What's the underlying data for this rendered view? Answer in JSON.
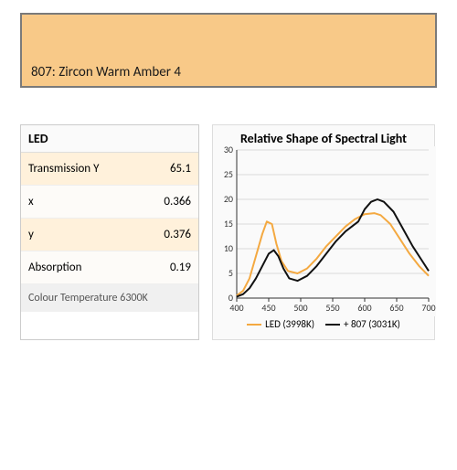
{
  "swatch": {
    "label": "807: Zircon Warm Amber 4",
    "fill_color": "#f8c988",
    "border_color": "#7a7a7a"
  },
  "table": {
    "header": "LED",
    "rows": [
      {
        "label": "Transmission Y",
        "value": "65.1",
        "bg": "#fff1db"
      },
      {
        "label": "x",
        "value": "0.366",
        "bg": "#fdfbf8"
      },
      {
        "label": "y",
        "value": "0.376",
        "bg": "#fff1db"
      },
      {
        "label": "Absorption",
        "value": "0.19",
        "bg": "#fdfbf8"
      }
    ],
    "footer": "Colour Temperature 6300K"
  },
  "chart": {
    "type": "line",
    "title": "Relative Shape of Spectral Light",
    "xlim": [
      400,
      700
    ],
    "ylim": [
      0,
      30
    ],
    "xtick_step": 50,
    "ytick_step": 5,
    "xticks": [
      400,
      450,
      500,
      550,
      600,
      650,
      700
    ],
    "yticks": [
      0,
      5,
      10,
      15,
      20,
      25,
      30
    ],
    "background_color": "#fafafa",
    "grid_color": "#d9d9d9",
    "axis_color": "#333333",
    "tick_fontsize": 10,
    "title_fontsize": 14,
    "line_width": 2,
    "series": [
      {
        "name": "LED (3998K)",
        "color": "#f4a941",
        "points": [
          [
            400,
            0.5
          ],
          [
            410,
            1.5
          ],
          [
            420,
            4
          ],
          [
            430,
            8.5
          ],
          [
            440,
            13.0
          ],
          [
            447,
            15.5
          ],
          [
            455,
            15.0
          ],
          [
            462,
            11.0
          ],
          [
            470,
            7.5
          ],
          [
            480,
            5.5
          ],
          [
            495,
            5.0
          ],
          [
            510,
            6.0
          ],
          [
            525,
            8.0
          ],
          [
            540,
            10.5
          ],
          [
            555,
            12.5
          ],
          [
            570,
            14.5
          ],
          [
            585,
            16.0
          ],
          [
            600,
            17.0
          ],
          [
            615,
            17.2
          ],
          [
            625,
            16.8
          ],
          [
            640,
            15.0
          ],
          [
            655,
            12.0
          ],
          [
            670,
            9.0
          ],
          [
            685,
            6.5
          ],
          [
            700,
            4.5
          ]
        ]
      },
      {
        "name": "+ 807 (3031K)",
        "color": "#111111",
        "points": [
          [
            400,
            0.3
          ],
          [
            410,
            0.8
          ],
          [
            420,
            2.0
          ],
          [
            430,
            4.0
          ],
          [
            440,
            6.5
          ],
          [
            450,
            9.0
          ],
          [
            458,
            9.7
          ],
          [
            465,
            8.5
          ],
          [
            473,
            6.0
          ],
          [
            482,
            4.0
          ],
          [
            495,
            3.5
          ],
          [
            510,
            4.5
          ],
          [
            525,
            6.5
          ],
          [
            540,
            9.0
          ],
          [
            555,
            11.5
          ],
          [
            570,
            13.5
          ],
          [
            580,
            14.5
          ],
          [
            590,
            15.5
          ],
          [
            600,
            18.0
          ],
          [
            610,
            19.5
          ],
          [
            620,
            20.0
          ],
          [
            630,
            19.5
          ],
          [
            645,
            17.5
          ],
          [
            660,
            14.0
          ],
          [
            675,
            10.5
          ],
          [
            690,
            7.5
          ],
          [
            700,
            5.5
          ]
        ]
      }
    ],
    "legend_position": "bottom"
  }
}
